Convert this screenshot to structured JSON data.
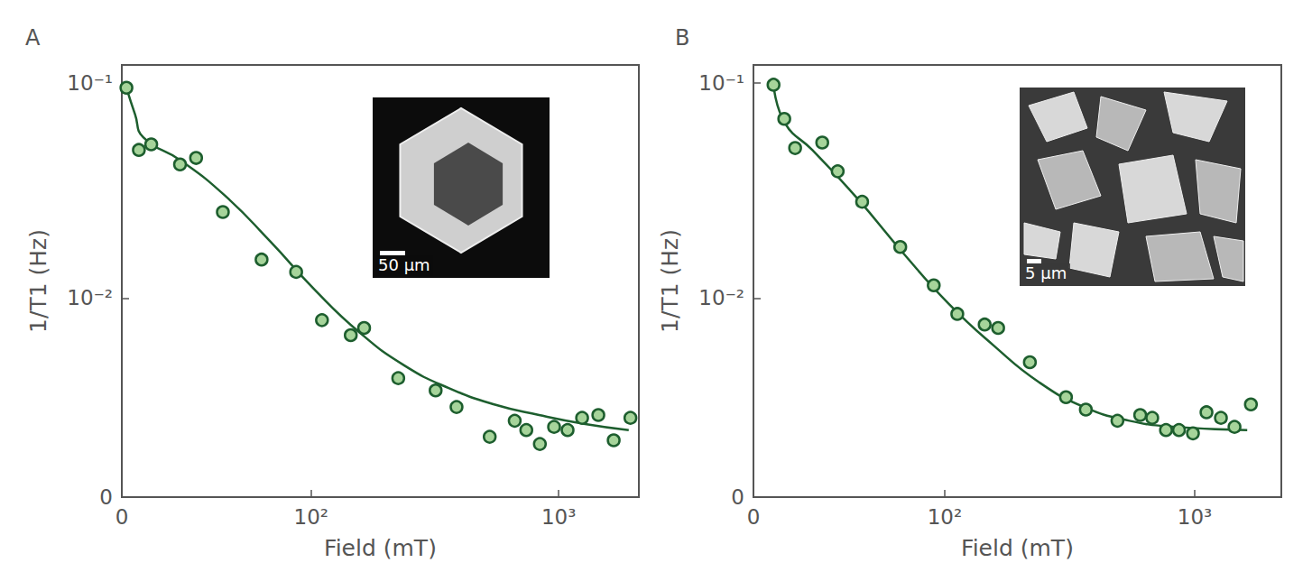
{
  "chart_data": [
    {
      "type": "scatter",
      "panel_label": "A",
      "x_label": "Field (mT)",
      "y_label": "1/T1 (Hz)",
      "log": true,
      "grid": false,
      "xlim": [
        0,
        2000
      ],
      "xticks": [
        0,
        {
          "value": 100,
          "label": "10²"
        },
        {
          "value": 1000,
          "label": "10³"
        }
      ],
      "ylim": [
        0,
        0.12
      ],
      "yticks": [
        0,
        {
          "value": 0.01,
          "label": "10⁻²"
        },
        {
          "value": 0.1,
          "label": "10⁻¹"
        }
      ],
      "annotations": [
        {
          "text": "50 µm"
        }
      ],
      "series": [
        {
          "type": "scatter",
          "marker": "circle",
          "color": "#a6d49a",
          "x": [
            1,
            3.9,
            7.1,
            16,
            22,
            34,
            57,
            85,
            112,
            150,
            171,
            237,
            335,
            405,
            545,
            680,
            753,
            848,
            960,
            1080,
            1225,
            1410,
            1610,
            1860
          ],
          "values": [
            0.095,
            0.05,
            0.053,
            0.043,
            0.046,
            0.026,
            0.0155,
            0.0135,
            0.0077,
            0.0064,
            0.007,
            0.0036,
            0.003,
            0.0023,
            0.0013,
            0.0018,
            0.0015,
            0.0011,
            0.0016,
            0.0015,
            0.0019,
            0.002,
            0.0012,
            0.0019
          ]
        },
        {
          "type": "line",
          "line_style": "solid",
          "color": "#1d5e2e",
          "x": [
            1,
            3,
            5,
            16,
            35,
            63,
            104,
            164,
            251,
            379,
            567,
            842,
            1243,
            1833
          ],
          "values": [
            0.095,
            0.072,
            0.057,
            0.045,
            0.031,
            0.019,
            0.011,
            0.0066,
            0.0043,
            0.0031,
            0.0024,
            0.002,
            0.0017,
            0.0015
          ]
        }
      ]
    },
    {
      "type": "scatter",
      "panel_label": "B",
      "x_label": "Field (mT)",
      "y_label": "1/T1 (Hz)",
      "log": true,
      "grid": false,
      "xlim": [
        0,
        2100
      ],
      "xticks": [
        0,
        {
          "value": 100,
          "label": "10²"
        },
        {
          "value": 1000,
          "label": "10³"
        }
      ],
      "ylim": [
        0,
        0.12
      ],
      "yticks": [
        0,
        {
          "value": 0.01,
          "label": "10⁻²"
        },
        {
          "value": 0.1,
          "label": "10⁻¹"
        }
      ],
      "annotations": [
        {
          "text": "5 µm"
        }
      ],
      "series": [
        {
          "type": "scatter",
          "marker": "circle",
          "color": "#a6d49a",
          "x": [
            4.6,
            7.4,
            10.5,
            19.6,
            25.8,
            37.4,
            61,
            89,
            114,
            150,
            171,
            231,
            322,
            385,
            510,
            623,
            692,
            780,
            873,
            985,
            1107,
            1253,
            1408,
            1620
          ],
          "values": [
            0.098,
            0.069,
            0.051,
            0.054,
            0.04,
            0.029,
            0.0178,
            0.0116,
            0.0083,
            0.0073,
            0.007,
            0.0045,
            0.0027,
            0.0022,
            0.0018,
            0.002,
            0.0019,
            0.0015,
            0.0015,
            0.0014,
            0.0021,
            0.0019,
            0.0016,
            0.0024
          ]
        },
        {
          "type": "line",
          "line_style": "solid",
          "color": "#1d5e2e",
          "x": [
            4.6,
            7.6,
            16,
            35,
            63,
            104,
            164,
            251,
            379,
            567,
            842,
            1570
          ],
          "values": [
            0.098,
            0.066,
            0.05,
            0.03,
            0.0167,
            0.0094,
            0.0056,
            0.0034,
            0.0023,
            0.0018,
            0.0016,
            0.0015
          ]
        }
      ]
    }
  ]
}
